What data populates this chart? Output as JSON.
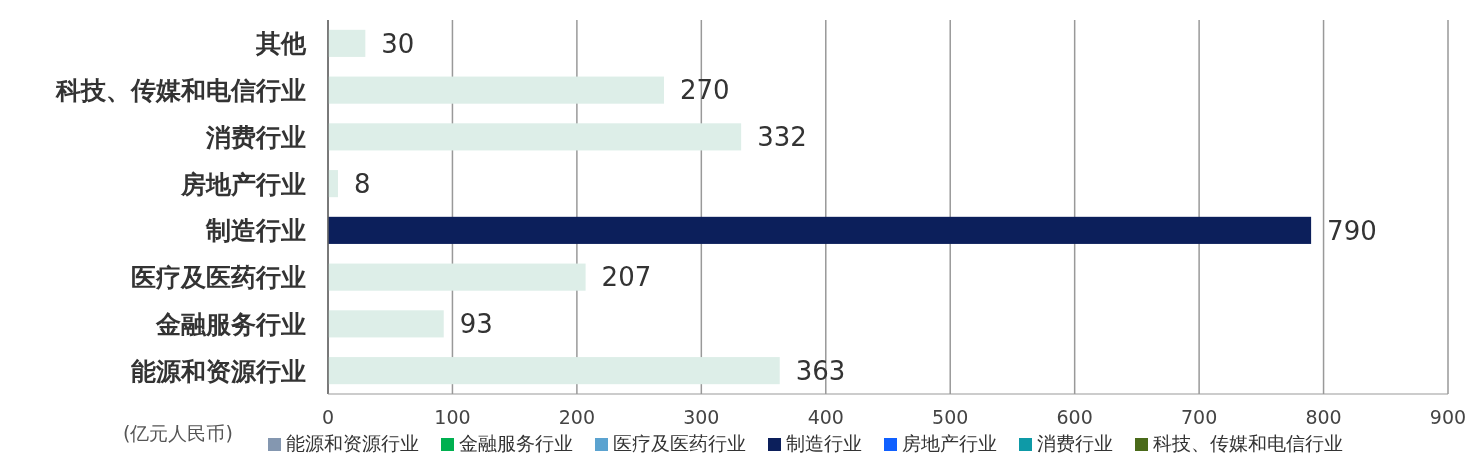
{
  "chart_data": {
    "type": "bar",
    "orientation": "horizontal",
    "categories": [
      "其他",
      "科技、传媒和电信行业",
      "消费行业",
      "房地产行业",
      "制造行业",
      "医疗及医药行业",
      "金融服务行业",
      "能源和资源行业"
    ],
    "values": [
      30,
      270,
      332,
      8,
      790,
      207,
      93,
      363
    ],
    "colors": [
      "#ddeee8",
      "#ddeee8",
      "#ddeee8",
      "#ddeee8",
      "#0c1f5b",
      "#ddeee8",
      "#ddeee8",
      "#ddeee8"
    ],
    "xlim": [
      0,
      900
    ],
    "xticks": [
      0,
      100,
      200,
      300,
      400,
      500,
      600,
      700,
      800,
      900
    ],
    "xlabel": "(亿元人民币)",
    "grid": "x",
    "data_labels": true,
    "annotations": [
      "能源和资源行业",
      "金融服务行业",
      "医疗及医药行业",
      "制造行业",
      "房地产行业",
      "消费行业",
      "科技、传媒和电信行业"
    ]
  }
}
